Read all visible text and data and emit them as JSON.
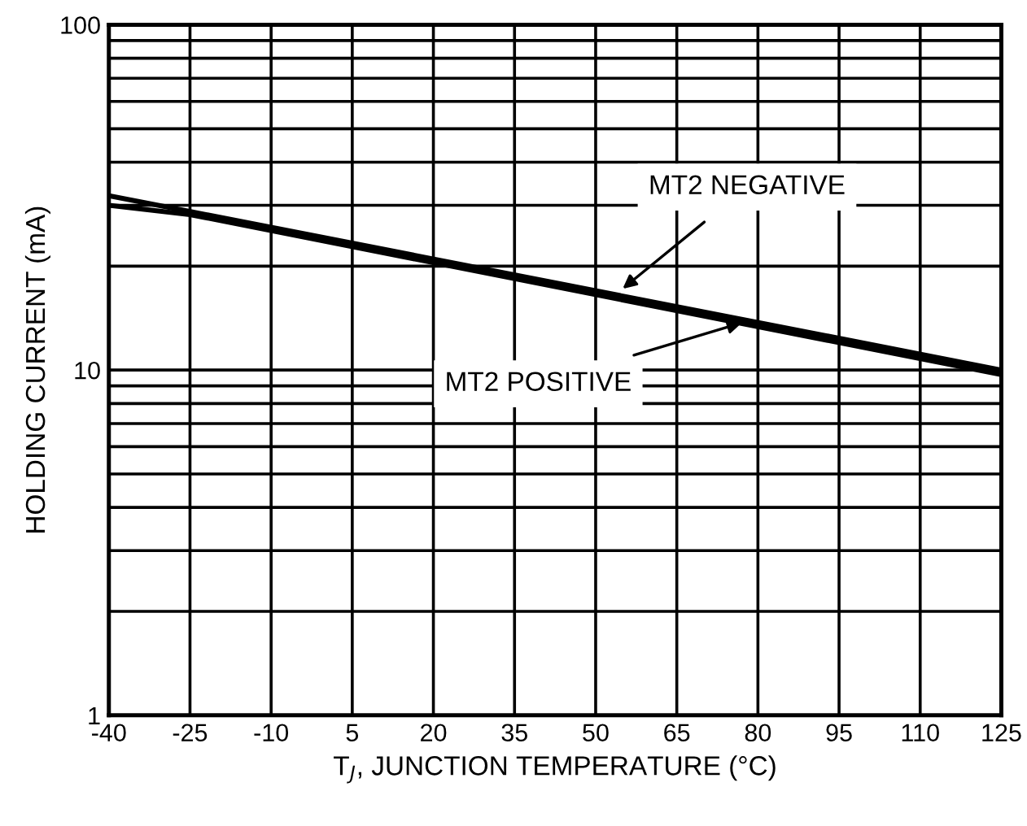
{
  "chart_data": {
    "type": "line",
    "xlabel": "T$_{J}$, JUNCTION TEMPERATURE (°C)",
    "ylabel": "HOLDING CURRENT (mA)",
    "log": "y",
    "xlim": [
      -40,
      125
    ],
    "ylim": [
      1,
      100
    ],
    "xticks": [
      -40,
      -25,
      -10,
      5,
      20,
      35,
      50,
      65,
      80,
      95,
      110,
      125
    ],
    "yticks": [
      1,
      {
        "value": 2,
        "label": null
      },
      {
        "value": 3,
        "label": null
      },
      {
        "value": 4,
        "label": null
      },
      {
        "value": 5,
        "label": null
      },
      {
        "value": 6,
        "label": null
      },
      {
        "value": 7,
        "label": null
      },
      {
        "value": 8,
        "label": null
      },
      {
        "value": 9,
        "label": null
      },
      10,
      {
        "value": 20,
        "label": null
      },
      {
        "value": 30,
        "label": null
      },
      {
        "value": 40,
        "label": null
      },
      {
        "value": 50,
        "label": null
      },
      {
        "value": 60,
        "label": null
      },
      {
        "value": 70,
        "label": null
      },
      {
        "value": 80,
        "label": null
      },
      {
        "value": 90,
        "label": null
      },
      100
    ],
    "grid": true,
    "marker": "none",
    "line_style": "solid",
    "series": [
      {
        "color": "#000000",
        "x": [
          -40,
          125
        ],
        "values": [
          32,
          10
        ]
      },
      {
        "color": "#000000",
        "x": [
          -40,
          -25,
          125
        ],
        "values": [
          30,
          28.2,
          9.7
        ]
      }
    ],
    "annotations": [
      {
        "text": "MT2 NEGATIVE",
        "x": 55,
        "y": 17.2
      },
      {
        "text": "MT2 POSITIVE",
        "x": 77,
        "y": 13.7
      }
    ]
  }
}
